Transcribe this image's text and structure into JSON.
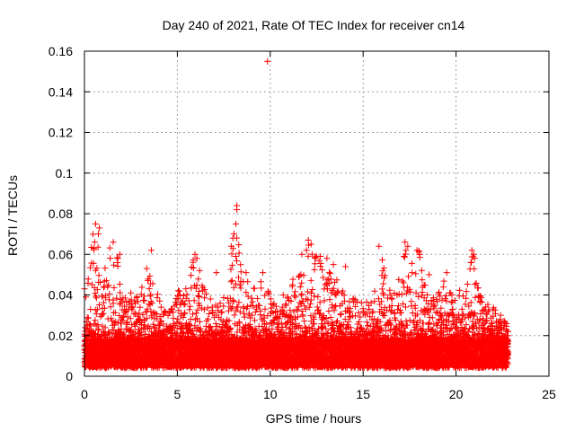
{
  "chart_data": {
    "type": "scatter",
    "title": "Day 240 of 2021, Rate Of TEC Index for receiver cn14",
    "xlabel": "GPS time / hours",
    "ylabel": "ROTI / TECUs",
    "xlim": [
      0,
      25
    ],
    "ylim": [
      0,
      0.16
    ],
    "x_ticks": [
      "0",
      "5",
      "10",
      "15",
      "20",
      "25"
    ],
    "y_ticks": [
      "0",
      "0.02",
      "0.04",
      "0.06",
      "0.08",
      "0.1",
      "0.12",
      "0.14",
      "0.16"
    ],
    "grid": true,
    "marker": "+",
    "color": "#ff0000",
    "data_extent_hours": [
      0,
      22.8
    ],
    "envelope": [
      [
        0.0,
        0.044
      ],
      [
        0.3,
        0.06
      ],
      [
        0.5,
        0.075
      ],
      [
        0.7,
        0.073
      ],
      [
        1.0,
        0.05
      ],
      [
        1.3,
        0.066
      ],
      [
        1.7,
        0.062
      ],
      [
        2.0,
        0.04
      ],
      [
        2.5,
        0.038
      ],
      [
        3.0,
        0.04
      ],
      [
        3.3,
        0.053
      ],
      [
        3.6,
        0.062
      ],
      [
        4.0,
        0.037
      ],
      [
        4.5,
        0.03
      ],
      [
        5.0,
        0.042
      ],
      [
        5.5,
        0.048
      ],
      [
        5.9,
        0.06
      ],
      [
        6.3,
        0.045
      ],
      [
        7.0,
        0.035
      ],
      [
        7.5,
        0.042
      ],
      [
        8.1,
        0.084
      ],
      [
        8.5,
        0.05
      ],
      [
        9.0,
        0.045
      ],
      [
        9.5,
        0.048
      ],
      [
        10.0,
        0.04
      ],
      [
        10.5,
        0.032
      ],
      [
        11.0,
        0.04
      ],
      [
        11.5,
        0.058
      ],
      [
        12.0,
        0.067
      ],
      [
        12.5,
        0.06
      ],
      [
        13.0,
        0.05
      ],
      [
        13.5,
        0.055
      ],
      [
        14.0,
        0.04
      ],
      [
        14.5,
        0.038
      ],
      [
        15.0,
        0.036
      ],
      [
        15.5,
        0.04
      ],
      [
        16.0,
        0.064
      ],
      [
        16.5,
        0.04
      ],
      [
        17.0,
        0.05
      ],
      [
        17.3,
        0.066
      ],
      [
        17.7,
        0.055
      ],
      [
        18.0,
        0.062
      ],
      [
        18.5,
        0.038
      ],
      [
        19.0,
        0.04
      ],
      [
        19.5,
        0.05
      ],
      [
        20.0,
        0.045
      ],
      [
        20.5,
        0.04
      ],
      [
        20.9,
        0.062
      ],
      [
        21.3,
        0.04
      ],
      [
        21.8,
        0.038
      ],
      [
        22.3,
        0.03
      ],
      [
        22.8,
        0.025
      ]
    ],
    "baseline_band": [
      0.004,
      0.018
    ],
    "points": [
      [
        9.85,
        0.155
      ],
      [
        8.2,
        0.084
      ],
      [
        8.2,
        0.082
      ],
      [
        8.15,
        0.075
      ],
      [
        8.2,
        0.068
      ],
      [
        8.15,
        0.059
      ],
      [
        0.6,
        0.075
      ],
      [
        0.8,
        0.073
      ],
      [
        0.75,
        0.07
      ],
      [
        0.55,
        0.066
      ],
      [
        0.5,
        0.063
      ],
      [
        1.55,
        0.066
      ],
      [
        1.9,
        0.06
      ],
      [
        1.8,
        0.058
      ],
      [
        3.6,
        0.062
      ],
      [
        3.35,
        0.053
      ],
      [
        5.95,
        0.06
      ],
      [
        6.05,
        0.058
      ],
      [
        5.85,
        0.056
      ],
      [
        6.2,
        0.052
      ],
      [
        7.1,
        0.051
      ],
      [
        8.7,
        0.051
      ],
      [
        9.6,
        0.051
      ],
      [
        11.7,
        0.06
      ],
      [
        12.05,
        0.067
      ],
      [
        12.2,
        0.065
      ],
      [
        11.95,
        0.062
      ],
      [
        12.4,
        0.058
      ],
      [
        12.7,
        0.059
      ],
      [
        13.05,
        0.058
      ],
      [
        13.4,
        0.055
      ],
      [
        14.05,
        0.054
      ],
      [
        15.85,
        0.064
      ],
      [
        17.25,
        0.066
      ],
      [
        17.4,
        0.064
      ],
      [
        17.3,
        0.062
      ],
      [
        17.9,
        0.062
      ],
      [
        18.0,
        0.061
      ],
      [
        17.2,
        0.059
      ],
      [
        20.85,
        0.062
      ],
      [
        20.95,
        0.06
      ],
      [
        21.0,
        0.058
      ],
      [
        20.8,
        0.056
      ],
      [
        19.5,
        0.051
      ],
      [
        18.55,
        0.05
      ],
      [
        16.1,
        0.04
      ],
      [
        10.7,
        0.04
      ],
      [
        11.2,
        0.045
      ],
      [
        4.05,
        0.037
      ],
      [
        2.5,
        0.041
      ],
      [
        22.6,
        0.025
      ],
      [
        22.8,
        0.022
      ],
      [
        22.4,
        0.03
      ]
    ]
  }
}
